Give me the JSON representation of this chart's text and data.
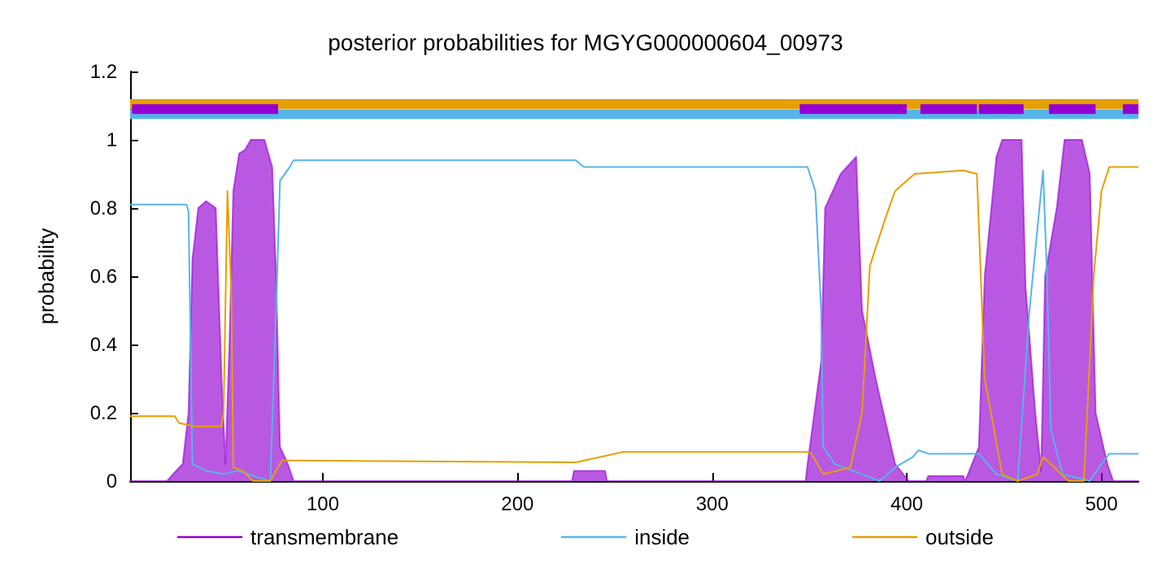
{
  "chart_data": {
    "type": "line",
    "title": "posterior probabilities for MGYG000000604_00973",
    "ylabel": "probability",
    "xlim": [
      1,
      519
    ],
    "xticks": [
      100,
      200,
      300,
      400,
      500
    ],
    "ylim": [
      0,
      1.2
    ],
    "yticks": [
      0,
      0.2,
      0.4,
      0.6,
      0.8,
      1,
      1.2
    ],
    "grid": false,
    "legend": "bottom",
    "marker": "none",
    "line_style": "solid",
    "series": [
      {
        "name": "transmembrane",
        "type": "area",
        "color": "#9400d3",
        "x": [
          1,
          20,
          23,
          28,
          31,
          33,
          36,
          40,
          45,
          48,
          50,
          52,
          54,
          57,
          60,
          63,
          70,
          74,
          76,
          78,
          82,
          85,
          228,
          229,
          245,
          246,
          348,
          349,
          356,
          358,
          366,
          374,
          377,
          384,
          394,
          401,
          410,
          411,
          429,
          430,
          437,
          440,
          446,
          449,
          459,
          461,
          466,
          469,
          471,
          477,
          481,
          490,
          494,
          497,
          503,
          506,
          519
        ],
        "values": [
          0,
          0,
          0.02,
          0.05,
          0.2,
          0.65,
          0.8,
          0.82,
          0.8,
          0.3,
          0.05,
          0.4,
          0.85,
          0.96,
          0.97,
          1,
          1,
          0.92,
          0.6,
          0.1,
          0.05,
          0,
          0,
          0.03,
          0.03,
          0,
          0,
          0.05,
          0.35,
          0.8,
          0.9,
          0.95,
          0.5,
          0.3,
          0.05,
          0,
          0,
          0.015,
          0.015,
          0,
          0.1,
          0.6,
          0.95,
          1,
          1,
          0.57,
          0.2,
          0.03,
          0.6,
          0.8,
          1,
          1,
          0.9,
          0.2,
          0.05,
          0,
          0
        ]
      },
      {
        "name": "inside",
        "color": "#56b4e9",
        "x": [
          1,
          30,
          31,
          33,
          40,
          49,
          56,
          73,
          76,
          78,
          83,
          85,
          230,
          234,
          349,
          353,
          356,
          357,
          363,
          377,
          386,
          394,
          403,
          406,
          411,
          437,
          446,
          457,
          463,
          470,
          472,
          474,
          480,
          494,
          500,
          504,
          519
        ],
        "values": [
          0.81,
          0.81,
          0.79,
          0.05,
          0.03,
          0.02,
          0.03,
          0,
          0.5,
          0.88,
          0.92,
          0.94,
          0.94,
          0.92,
          0.92,
          0.85,
          0.5,
          0.1,
          0.05,
          0.02,
          0,
          0.04,
          0.07,
          0.09,
          0.08,
          0.08,
          0.02,
          0,
          0.5,
          0.91,
          0.6,
          0.15,
          0.02,
          0,
          0.05,
          0.08,
          0.08
        ]
      },
      {
        "name": "outside",
        "color": "#e69f00",
        "x": [
          1,
          24,
          26,
          34,
          48,
          49,
          51,
          53,
          54,
          59,
          64,
          73,
          79,
          83,
          230,
          254,
          349,
          351,
          357,
          371,
          377,
          381,
          389,
          394,
          404,
          429,
          436,
          440,
          449,
          457,
          467,
          470,
          474,
          483,
          491,
          496,
          500,
          504,
          519
        ],
        "values": [
          0.19,
          0.19,
          0.17,
          0.16,
          0.16,
          0.2,
          0.85,
          0.55,
          0.04,
          0.03,
          0,
          0,
          0.06,
          0.06,
          0.055,
          0.085,
          0.085,
          0.08,
          0.02,
          0.04,
          0.2,
          0.63,
          0.77,
          0.85,
          0.9,
          0.91,
          0.9,
          0.3,
          0.02,
          0,
          0.02,
          0.07,
          0.05,
          0,
          0,
          0.6,
          0.85,
          0.92,
          0.92
        ]
      },
      {
        "color": "#e69f00",
        "x": [
          1,
          519
        ],
        "values": [
          1.105,
          1.105
        ]
      },
      {
        "color": "#56b4e9",
        "x": [
          1,
          519
        ],
        "values": [
          1.075,
          1.075
        ]
      },
      {
        "color": "#9400d3",
        "x": [
          2,
          77,
          null,
          345,
          400,
          null,
          407,
          436,
          null,
          437,
          460,
          null,
          473,
          497,
          null,
          511,
          519
        ],
        "values": [
          1.09,
          1.09,
          null,
          1.09,
          1.09,
          null,
          1.09,
          1.09,
          null,
          1.09,
          1.09,
          null,
          1.09,
          1.09,
          null,
          1.09,
          1.09
        ]
      }
    ]
  }
}
